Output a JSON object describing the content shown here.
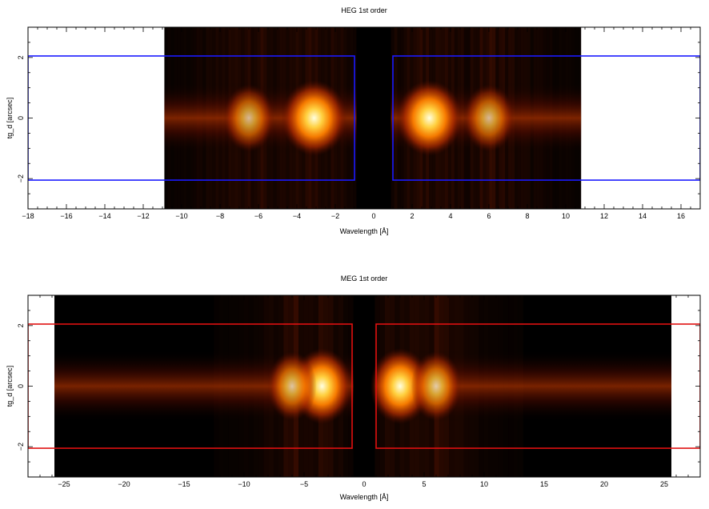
{
  "chart_data": [
    {
      "type": "heatmap",
      "title": "HEG 1st order",
      "xlabel": "Wavelength [Å]",
      "ylabel": "tg_d [arcsec]",
      "xlim": [
        -18,
        17
      ],
      "ylim": [
        -3,
        3
      ],
      "x_ticks": [
        -18,
        -16,
        -14,
        -12,
        -10,
        -8,
        -6,
        -4,
        -2,
        0,
        2,
        4,
        6,
        8,
        10,
        12,
        14,
        16
      ],
      "x_tick_labels": [
        "−18",
        "−16",
        "−14",
        "−12",
        "−10",
        "−8",
        "−6",
        "−4",
        "−2",
        "0",
        "2",
        "4",
        "6",
        "8",
        "10",
        "12",
        "14",
        "16"
      ],
      "y_ticks": [
        -2,
        0,
        2
      ],
      "y_tick_labels": [
        "−2",
        "0",
        "2"
      ],
      "data_extent_x": [
        -10.9,
        10.8
      ],
      "masked_gap_x": [
        -0.9,
        0.9
      ],
      "emission_peaks": [
        {
          "x": -3.1,
          "y": 0,
          "intensity": 1.0
        },
        {
          "x": -6.5,
          "y": 0,
          "intensity": 0.45
        },
        {
          "x": 2.9,
          "y": 0,
          "intensity": 1.0
        },
        {
          "x": 6.0,
          "y": 0,
          "intensity": 0.45
        }
      ],
      "extraction_regions": [
        {
          "x": [
            -18,
            -1.0
          ],
          "y": [
            -2.05,
            2.05
          ]
        },
        {
          "x": [
            1.0,
            17
          ],
          "y": [
            -2.05,
            2.05
          ]
        }
      ],
      "region_color": "#1a1aff",
      "colormap": [
        "#000000",
        "#5a0a00",
        "#b83000",
        "#ff8000",
        "#ffd040",
        "#ffffe0"
      ]
    },
    {
      "type": "heatmap",
      "title": "MEG 1st order",
      "xlabel": "Wavelength [Å]",
      "ylabel": "tg_d [arcsec]",
      "xlim": [
        -28,
        28
      ],
      "ylim": [
        -3,
        3
      ],
      "x_ticks": [
        -25,
        -20,
        -15,
        -10,
        -5,
        0,
        5,
        10,
        15,
        20,
        25
      ],
      "x_tick_labels": [
        "−25",
        "−20",
        "−15",
        "−10",
        "−5",
        "0",
        "5",
        "10",
        "15",
        "20",
        "25"
      ],
      "y_ticks": [
        -2,
        0,
        2
      ],
      "y_tick_labels": [
        "−2",
        "0",
        "2"
      ],
      "data_extent_x": [
        -25.8,
        25.6
      ],
      "masked_gap_x": [
        -0.9,
        0.9
      ],
      "emission_peaks": [
        {
          "x": -3.5,
          "y": 0,
          "intensity": 1.0
        },
        {
          "x": -6.0,
          "y": 0,
          "intensity": 0.55
        },
        {
          "x": 3.0,
          "y": 0,
          "intensity": 1.0
        },
        {
          "x": 6.0,
          "y": 0,
          "intensity": 0.6
        }
      ],
      "extraction_regions": [
        {
          "x": [
            -28,
            -1.0
          ],
          "y": [
            -2.05,
            2.05
          ]
        },
        {
          "x": [
            1.0,
            28
          ],
          "y": [
            -2.05,
            2.05
          ]
        }
      ],
      "region_color": "#e01010",
      "colormap": [
        "#000000",
        "#5a0a00",
        "#b83000",
        "#ff8000",
        "#ffd040",
        "#ffffe0"
      ]
    }
  ]
}
